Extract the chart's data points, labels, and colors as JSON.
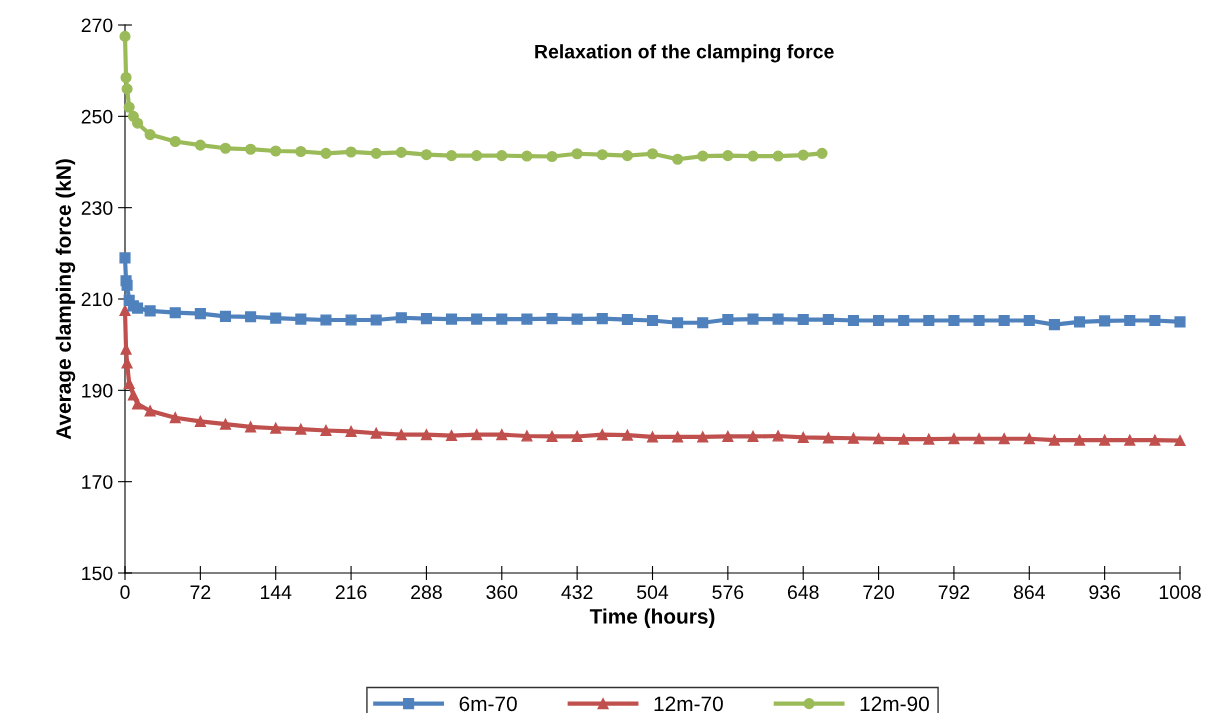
{
  "chart_data": {
    "type": "line",
    "title": "Relaxation of the clamping force",
    "xlabel": "Time (hours)",
    "ylabel": "Average clamping force (kN)",
    "xlim": [
      0,
      1008
    ],
    "xticks": [
      0,
      72,
      144,
      216,
      288,
      360,
      432,
      504,
      576,
      648,
      720,
      792,
      864,
      936,
      1008
    ],
    "ylim": [
      150,
      270
    ],
    "yticks": [
      150,
      170,
      190,
      210,
      230,
      250,
      270
    ],
    "grid": false,
    "legend": "bottom",
    "line_style": "solid",
    "series": [
      {
        "name": "6m-70",
        "color": "#4f81bd",
        "marker": "square",
        "x": [
          0,
          1,
          2,
          4,
          8,
          12,
          24,
          48,
          72,
          96,
          120,
          144,
          168,
          192,
          216,
          240,
          264,
          288,
          312,
          336,
          360,
          384,
          408,
          432,
          456,
          480,
          504,
          528,
          552,
          576,
          600,
          624,
          648,
          672,
          696,
          720,
          744,
          768,
          792,
          816,
          840,
          864,
          888,
          912,
          936,
          960,
          984,
          1008
        ],
        "values": [
          219,
          214,
          213,
          209.7,
          208.5,
          208,
          207.4,
          207,
          206.8,
          206.2,
          206.1,
          205.8,
          205.6,
          205.4,
          205.4,
          205.4,
          205.9,
          205.7,
          205.6,
          205.6,
          205.6,
          205.6,
          205.7,
          205.6,
          205.7,
          205.5,
          205.3,
          204.8,
          204.8,
          205.5,
          205.6,
          205.6,
          205.5,
          205.5,
          205.3,
          205.3,
          205.3,
          205.3,
          205.3,
          205.3,
          205.3,
          205.3,
          204.4,
          205,
          205.2,
          205.3,
          205.3,
          205
        ]
      },
      {
        "name": "12m-70",
        "color": "#c0504d",
        "marker": "triangle",
        "x": [
          0,
          1,
          2,
          4,
          8,
          12,
          24,
          48,
          72,
          96,
          120,
          144,
          168,
          192,
          216,
          240,
          264,
          288,
          312,
          336,
          360,
          384,
          408,
          432,
          456,
          480,
          504,
          528,
          552,
          576,
          600,
          624,
          648,
          672,
          696,
          720,
          744,
          768,
          792,
          816,
          840,
          864,
          888,
          912,
          936,
          960,
          984,
          1008
        ],
        "values": [
          207.5,
          199,
          196,
          191.5,
          189,
          187,
          185.5,
          184,
          183.2,
          182.6,
          182,
          181.7,
          181.5,
          181.2,
          181,
          180.6,
          180.3,
          180.3,
          180.1,
          180.3,
          180.3,
          180,
          179.9,
          179.9,
          180.3,
          180.2,
          179.8,
          179.8,
          179.8,
          179.9,
          179.9,
          180,
          179.7,
          179.6,
          179.5,
          179.4,
          179.3,
          179.3,
          179.4,
          179.4,
          179.4,
          179.4,
          179.1,
          179.1,
          179.1,
          179.1,
          179.1,
          179
        ]
      },
      {
        "name": "12m-90",
        "color": "#9bbb59",
        "marker": "circle",
        "x": [
          0,
          1,
          2,
          4,
          8,
          12,
          24,
          48,
          72,
          96,
          120,
          144,
          168,
          192,
          216,
          240,
          264,
          288,
          312,
          336,
          360,
          384,
          408,
          432,
          456,
          480,
          504,
          528,
          552,
          576,
          600,
          624,
          648,
          666
        ],
        "values": [
          267.5,
          258.5,
          256,
          252,
          250,
          248.5,
          246,
          244.5,
          243.7,
          243,
          242.8,
          242.4,
          242.3,
          241.9,
          242.2,
          241.9,
          242.1,
          241.6,
          241.4,
          241.4,
          241.4,
          241.3,
          241.2,
          241.8,
          241.6,
          241.4,
          241.8,
          240.6,
          241.3,
          241.4,
          241.3,
          241.3,
          241.5,
          241.9
        ]
      }
    ]
  }
}
